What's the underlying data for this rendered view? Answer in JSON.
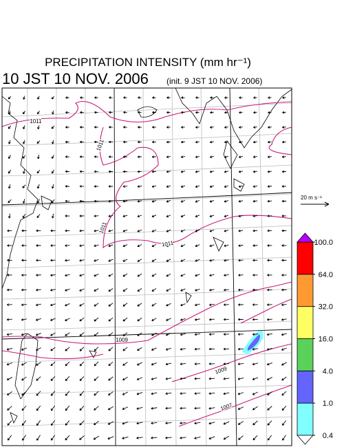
{
  "title": "PRECIPITATION INTENSITY (mm hr⁻¹)",
  "valid_time": "10 JST 10 NOV. 2006",
  "init_time": "(init. 9 JST 10 NOV. 2006)",
  "wind_scale_label": "20 m s⁻¹",
  "isobar_labels": [
    "1011",
    "1011",
    "1011",
    "1011",
    "1009",
    "1009",
    "1007"
  ],
  "colorbar": {
    "levels": [
      {
        "value": 0.4,
        "label": "0.4"
      },
      {
        "value": 1,
        "label": "1.0"
      },
      {
        "value": 4,
        "label": "4.0"
      },
      {
        "value": 16,
        "label": "16.0"
      },
      {
        "value": 32,
        "label": "32.0"
      },
      {
        "value": 64,
        "label": "64.0"
      },
      {
        "value": 100,
        "label": "100.0"
      }
    ],
    "colors": [
      "#80ffff",
      "#6464ff",
      "#5ad25a",
      "#ffff64",
      "#ff9a32",
      "#ff0000"
    ],
    "over_color": "#b400ff",
    "under_color": "#ffffff"
  }
}
